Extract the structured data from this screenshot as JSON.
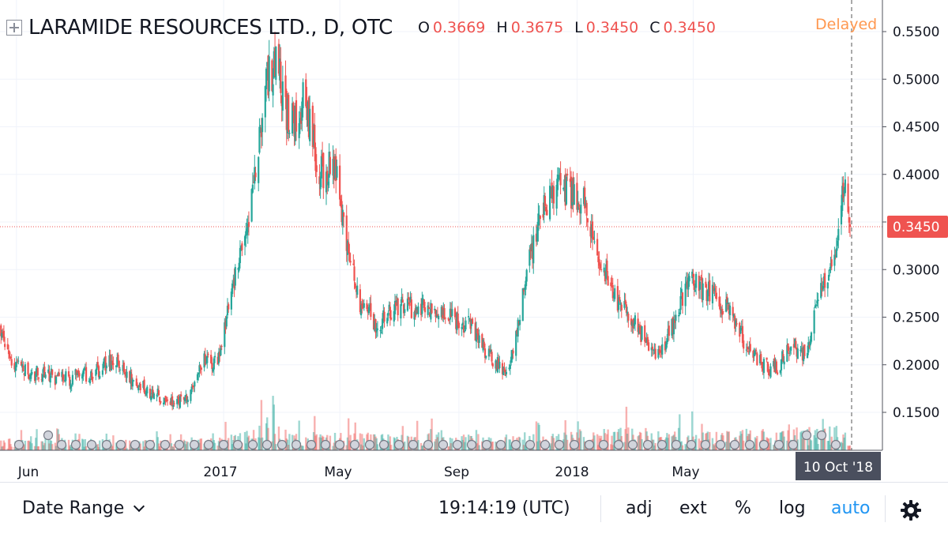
{
  "header": {
    "symbol_title": "LARAMIDE RESOURCES LTD., D, OTC",
    "ohlc": [
      {
        "label": "O",
        "value": "0.3669"
      },
      {
        "label": "H",
        "value": "0.3675"
      },
      {
        "label": "L",
        "value": "0.3450"
      },
      {
        "label": "C",
        "value": "0.3450"
      }
    ],
    "delayed_label": "Delayed"
  },
  "footer": {
    "date_range_label": "Date Range",
    "clock": "19:14:19 (UTC)",
    "adj_label": "adj",
    "ext_label": "ext",
    "percent_label": "%",
    "log_label": "log",
    "auto_label": "auto"
  },
  "colors": {
    "up": "#26a69a",
    "down": "#ef5350",
    "grid": "#f0f3fa",
    "auto_active": "#2196f3",
    "delayed": "#ff9850"
  },
  "chart_data": {
    "type": "candlestick",
    "title": "LARAMIDE RESOURCES LTD., D, OTC",
    "ylim": [
      0.115,
      0.575
    ],
    "y_ticks": [
      "0.1500",
      "0.2000",
      "0.2500",
      "0.3000",
      "0.3500",
      "0.4000",
      "0.4500",
      "0.5000",
      "0.5500"
    ],
    "x_ticks": [
      "Jun",
      "2017",
      "May",
      "Sep",
      "2018",
      "May"
    ],
    "last_price_label": "0.3450",
    "last_price": 0.345,
    "crosshair_date_label": "10 Oct '18",
    "series_close_trajectory": [
      [
        "2016-05-15",
        0.24
      ],
      [
        "2016-05-25",
        0.21
      ],
      [
        "2016-06-05",
        0.195
      ],
      [
        "2016-06-25",
        0.19
      ],
      [
        "2016-07-20",
        0.185
      ],
      [
        "2016-08-15",
        0.19
      ],
      [
        "2016-09-10",
        0.205
      ],
      [
        "2016-10-01",
        0.18
      ],
      [
        "2016-10-20",
        0.17
      ],
      [
        "2016-11-10",
        0.16
      ],
      [
        "2016-11-25",
        0.17
      ],
      [
        "2016-12-10",
        0.205
      ],
      [
        "2016-12-25",
        0.2
      ],
      [
        "2017-01-15",
        0.3
      ],
      [
        "2017-01-31",
        0.38
      ],
      [
        "2017-02-15",
        0.5
      ],
      [
        "2017-02-25",
        0.52
      ],
      [
        "2017-03-10",
        0.45
      ],
      [
        "2017-03-25",
        0.48
      ],
      [
        "2017-04-10",
        0.4
      ],
      [
        "2017-04-25",
        0.41
      ],
      [
        "2017-05-05",
        0.35
      ],
      [
        "2017-05-20",
        0.27
      ],
      [
        "2017-06-10",
        0.24
      ],
      [
        "2017-06-25",
        0.26
      ],
      [
        "2017-07-15",
        0.26
      ],
      [
        "2017-08-05",
        0.26
      ],
      [
        "2017-08-25",
        0.25
      ],
      [
        "2017-09-15",
        0.24
      ],
      [
        "2017-10-01",
        0.21
      ],
      [
        "2017-10-20",
        0.19
      ],
      [
        "2017-11-01",
        0.24
      ],
      [
        "2017-11-10",
        0.3
      ],
      [
        "2017-11-25",
        0.36
      ],
      [
        "2017-12-10",
        0.39
      ],
      [
        "2017-12-25",
        0.38
      ],
      [
        "2018-01-10",
        0.37
      ],
      [
        "2018-01-25",
        0.31
      ],
      [
        "2018-02-10",
        0.27
      ],
      [
        "2018-02-25",
        0.25
      ],
      [
        "2018-03-10",
        0.23
      ],
      [
        "2018-03-25",
        0.21
      ],
      [
        "2018-04-10",
        0.24
      ],
      [
        "2018-04-25",
        0.29
      ],
      [
        "2018-05-10",
        0.28
      ],
      [
        "2018-05-25",
        0.27
      ],
      [
        "2018-06-10",
        0.25
      ],
      [
        "2018-06-25",
        0.22
      ],
      [
        "2018-07-10",
        0.2
      ],
      [
        "2018-07-25",
        0.195
      ],
      [
        "2018-08-10",
        0.22
      ],
      [
        "2018-08-25",
        0.21
      ],
      [
        "2018-09-05",
        0.26
      ],
      [
        "2018-09-15",
        0.29
      ],
      [
        "2018-09-25",
        0.32
      ],
      [
        "2018-10-02",
        0.38
      ],
      [
        "2018-10-07",
        0.39
      ],
      [
        "2018-10-10",
        0.345
      ]
    ],
    "volume_relative": [
      [
        "2016-06-25",
        0.2
      ],
      [
        "2016-10-01",
        0.15
      ],
      [
        "2016-12-25",
        0.2
      ],
      [
        "2017-01-31",
        0.35
      ],
      [
        "2017-02-15",
        0.6
      ],
      [
        "2017-02-25",
        0.5
      ],
      [
        "2017-03-10",
        0.3
      ],
      [
        "2017-11-10",
        0.25
      ],
      [
        "2017-12-25",
        0.3
      ],
      [
        "2018-01-10",
        0.4
      ],
      [
        "2018-06-10",
        0.35
      ],
      [
        "2018-09-25",
        0.4
      ],
      [
        "2018-10-02",
        0.45
      ],
      [
        "2018-10-07",
        0.35
      ]
    ]
  }
}
